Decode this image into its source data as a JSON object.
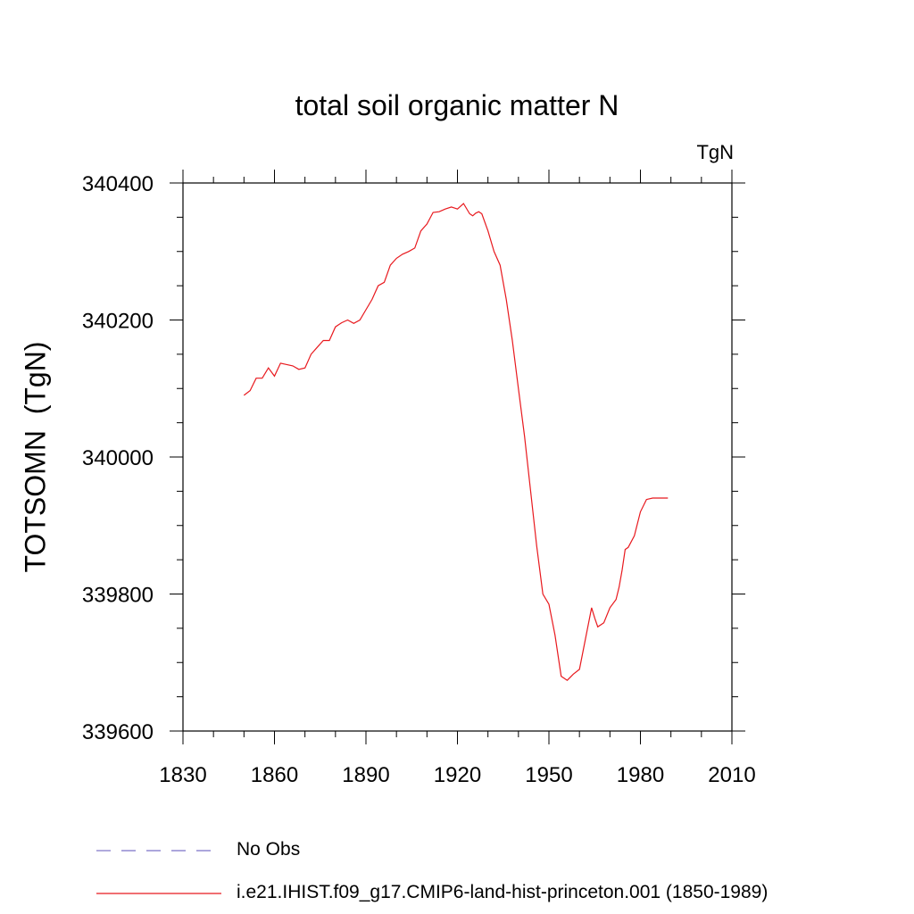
{
  "chart_data": {
    "type": "line",
    "title": "total soil organic matter N",
    "units": "TgN",
    "ylabel": "TOTSOMN  (TgN)",
    "xlabel": "",
    "xlim": [
      1830,
      2010
    ],
    "ylim": [
      339600,
      340400
    ],
    "xticks": [
      "1830",
      "1860",
      "1890",
      "1920",
      "1950",
      "1980",
      "2010"
    ],
    "yticks": [
      "340400",
      "340200",
      "340000",
      "339800",
      "339600"
    ],
    "grid": false,
    "legend_position": "bottom",
    "series": [
      {
        "name": "No Obs",
        "style": "dashed",
        "color": "#7b70c6",
        "x": [],
        "y": []
      },
      {
        "name": "i.e21.IHIST.f09_g17.CMIP6-land-hist-princeton.001 (1850-1989)",
        "style": "solid",
        "color": "#e8191e",
        "x": [
          1850,
          1852,
          1854,
          1856,
          1858,
          1860,
          1862,
          1864,
          1866,
          1868,
          1870,
          1872,
          1874,
          1876,
          1878,
          1880,
          1882,
          1884,
          1886,
          1888,
          1890,
          1892,
          1894,
          1896,
          1898,
          1900,
          1902,
          1904,
          1906,
          1908,
          1910,
          1912,
          1914,
          1916,
          1918,
          1920,
          1922,
          1924,
          1925,
          1926,
          1927,
          1928,
          1930,
          1932,
          1934,
          1936,
          1938,
          1940,
          1942,
          1944,
          1946,
          1948,
          1950,
          1952,
          1954,
          1956,
          1958,
          1960,
          1962,
          1964,
          1965,
          1966,
          1968,
          1970,
          1972,
          1973,
          1974,
          1975,
          1976,
          1978,
          1980,
          1982,
          1984,
          1986,
          1988,
          1989
        ],
        "y": [
          340090,
          340097,
          340115,
          340115,
          340130,
          340118,
          340137,
          340135,
          340133,
          340128,
          340130,
          340150,
          340160,
          340170,
          340170,
          340190,
          340196,
          340200,
          340195,
          340200,
          340215,
          340230,
          340250,
          340255,
          340280,
          340290,
          340296,
          340300,
          340305,
          340330,
          340340,
          340357,
          340358,
          340362,
          340365,
          340362,
          340370,
          340355,
          340352,
          340356,
          340358,
          340355,
          340330,
          340300,
          340280,
          340230,
          340170,
          340100,
          340030,
          339950,
          339870,
          339800,
          339785,
          339740,
          339680,
          339674,
          339683,
          339690,
          339735,
          339780,
          339765,
          339752,
          339758,
          339780,
          339792,
          339810,
          339835,
          339865,
          339868,
          339885,
          339920,
          339938,
          339940,
          339940,
          339940,
          339940
        ]
      }
    ]
  }
}
